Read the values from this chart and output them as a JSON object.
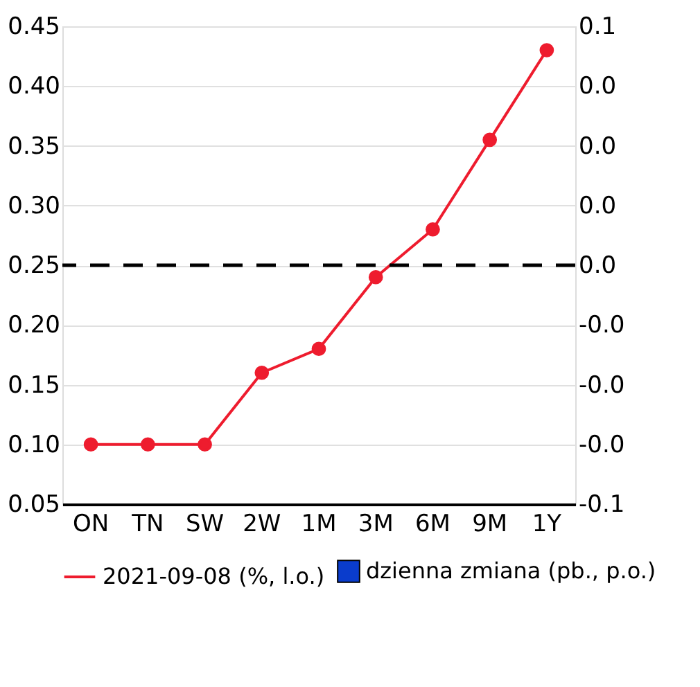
{
  "chart_data": {
    "type": "line",
    "categories": [
      "ON",
      "TN",
      "SW",
      "2W",
      "1M",
      "3M",
      "6M",
      "9M",
      "1Y"
    ],
    "series": [
      {
        "name": "2021-09-08 (%, l.o.)",
        "color": "#ee1c2e",
        "values": [
          0.1,
          0.1,
          0.1,
          0.16,
          0.18,
          0.24,
          0.28,
          0.355,
          0.43
        ]
      },
      {
        "name": "dzienna zmiana (pb., p.o.)",
        "color": "#0a3ccc",
        "type": "bar",
        "axis": "y2",
        "values": [
          0,
          0,
          0,
          0,
          0,
          0,
          0,
          0,
          0
        ]
      }
    ],
    "ylim": [
      0.05,
      0.45
    ],
    "yticks": [
      0.05,
      {
        "value": 0.1,
        "label": "0.10"
      },
      0.15,
      {
        "value": 0.2,
        "label": "0.20"
      },
      0.25,
      {
        "value": 0.3,
        "label": "0.30"
      },
      0.35,
      {
        "value": 0.4,
        "label": "0.40"
      },
      0.45
    ],
    "y2lim": [
      -0.05,
      0.05
    ],
    "y2ticks": [
      {
        "value": -0.05,
        "label": "-0.1"
      },
      {
        "value": -0.0375,
        "label": "-0.0"
      },
      {
        "value": -0.025,
        "label": "-0.0"
      },
      {
        "value": -0.0125,
        "label": "-0.0"
      },
      {
        "value": 0,
        "label": "0.0"
      },
      {
        "value": 0.0125,
        "label": "0.0"
      },
      {
        "value": 0.025,
        "label": "0.0"
      },
      {
        "value": 0.0375,
        "label": "0.0"
      },
      {
        "value": 0.05,
        "label": "0.1"
      }
    ],
    "ref_lines": [
      {
        "axis": "y2",
        "value": 0,
        "color": "#000000",
        "line_style": "dashed"
      }
    ],
    "grid": "y",
    "legend": "bottom",
    "marker": "circle"
  }
}
